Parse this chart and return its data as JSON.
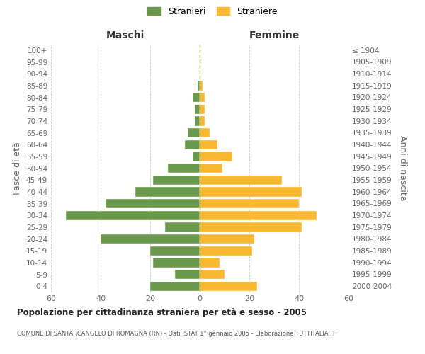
{
  "age_groups": [
    "0-4",
    "5-9",
    "10-14",
    "15-19",
    "20-24",
    "25-29",
    "30-34",
    "35-39",
    "40-44",
    "45-49",
    "50-54",
    "55-59",
    "60-64",
    "65-69",
    "70-74",
    "75-79",
    "80-84",
    "85-89",
    "90-94",
    "95-99",
    "100+"
  ],
  "birth_years": [
    "2000-2004",
    "1995-1999",
    "1990-1994",
    "1985-1989",
    "1980-1984",
    "1975-1979",
    "1970-1974",
    "1965-1969",
    "1960-1964",
    "1955-1959",
    "1950-1954",
    "1945-1949",
    "1940-1944",
    "1935-1939",
    "1930-1934",
    "1925-1929",
    "1920-1924",
    "1915-1919",
    "1910-1914",
    "1905-1909",
    "≤ 1904"
  ],
  "maschi": [
    20,
    10,
    19,
    20,
    40,
    14,
    54,
    38,
    26,
    19,
    13,
    3,
    6,
    5,
    2,
    2,
    3,
    1,
    0,
    0,
    0
  ],
  "femmine": [
    23,
    10,
    8,
    21,
    22,
    41,
    47,
    40,
    41,
    33,
    9,
    13,
    7,
    4,
    2,
    2,
    2,
    1,
    0,
    0,
    0
  ],
  "color_maschi": "#6a994e",
  "color_femmine": "#f9b832",
  "title": "Popolazione per cittadinanza straniera per età e sesso - 2005",
  "subtitle": "COMUNE DI SANTARCANGELO DI ROMAGNA (RN) - Dati ISTAT 1° gennaio 2005 - Elaborazione TUTTITALIA.IT",
  "xlabel_left": "Maschi",
  "xlabel_right": "Femmine",
  "ylabel_left": "Fasce di età",
  "ylabel_right": "Anni di nascita",
  "xlim": 60,
  "legend_stranieri": "Stranieri",
  "legend_straniere": "Straniere",
  "background_color": "#ffffff",
  "grid_color": "#cccccc",
  "text_color": "#666666"
}
